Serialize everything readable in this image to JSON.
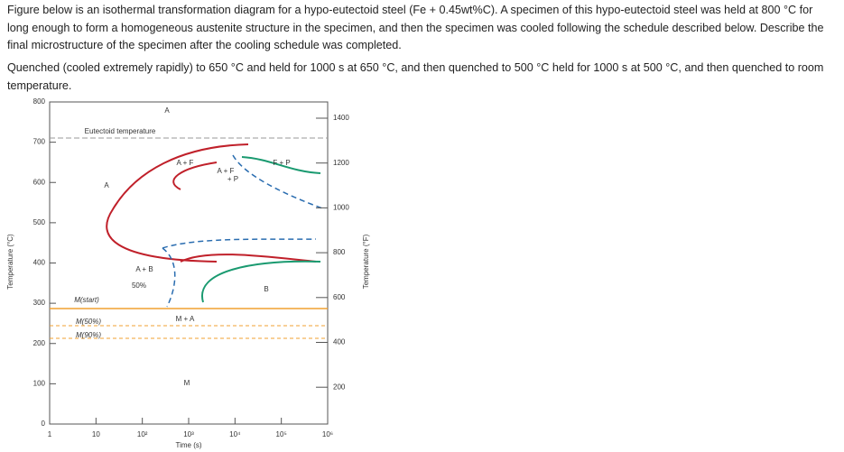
{
  "question": {
    "paragraphs": [
      "Figure below is an isothermal transformation diagram for a hypo-eutectoid steel (Fe + 0.45wt%C). A specimen of this hypo-eutectoid steel was held at 800 °C for long enough to form a homogeneous austenite structure in the specimen, and then the specimen was cooled following the schedule described below. Describe the final microstructure of the specimen after the cooling schedule was completed.",
      "Quenched (cooled extremely rapidly) to 650 °C and held for 1000 s at 650 °C, and then quenched to 500 °C held for 1000 s at 500 °C, and then quenched to room temperature."
    ]
  },
  "figure": {
    "y_label_left": "Temperature (°C)",
    "y_label_right": "Temperature (°F)",
    "x_label": "Time (s)",
    "left_ticks": [
      "800",
      "700",
      "600",
      "500",
      "400",
      "300",
      "200",
      "100",
      "0"
    ],
    "right_ticks": [
      "1400",
      "1200",
      "1000",
      "800",
      "600",
      "400",
      "200"
    ],
    "x_ticks": [
      "1",
      "10",
      "10²",
      "10³",
      "10⁴",
      "10⁵",
      "10⁶"
    ],
    "labels": [
      "A",
      "Eutectoid temperature",
      "A + F",
      "A + F",
      "+ P",
      "F + P",
      "A",
      "A + B",
      "50%",
      "B",
      "M(start)",
      "M + A",
      "M(50%)",
      "M(90%)",
      "M"
    ]
  }
}
